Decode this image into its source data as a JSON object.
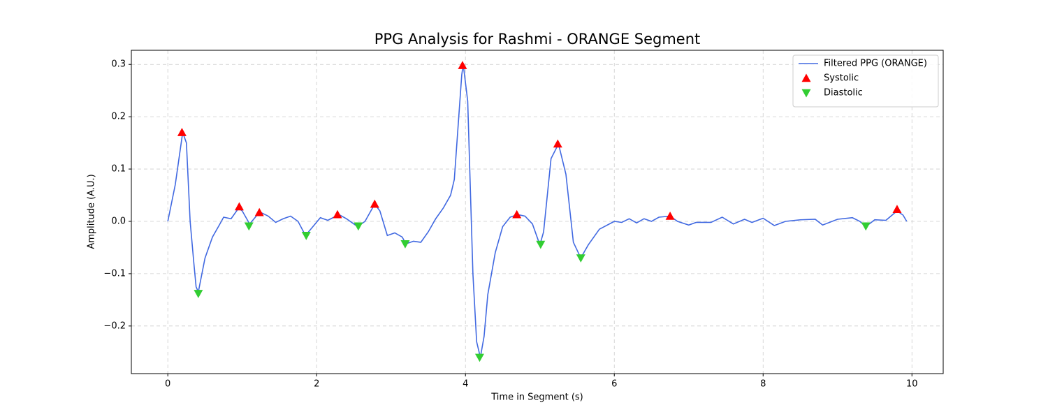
{
  "chart_data": {
    "type": "line",
    "title": "PPG Analysis for Rashmi - ORANGE Segment",
    "x_label": "Time in Segment (s)",
    "y_label": "Amplitude (A.U.)",
    "xlim": [
      -0.49,
      10.42
    ],
    "ylim": [
      -0.291,
      0.327
    ],
    "xticks": [
      0,
      2,
      4,
      6,
      8,
      10
    ],
    "yticks": [
      {
        "value": -0.2,
        "label": "−0.2"
      },
      {
        "value": -0.1,
        "label": "−0.1"
      },
      {
        "value": 0,
        "label": "0.0"
      },
      0.1,
      0.2,
      0.3
    ],
    "grid": true,
    "legend": "upper right",
    "series": [
      {
        "name": "Filtered PPG (ORANGE)",
        "type": "line",
        "color": "#4169e1",
        "x": [
          0,
          0.1,
          0.2,
          0.25,
          0.3,
          0.35,
          0.38,
          0.41,
          0.5,
          0.6,
          0.7,
          0.75,
          0.85,
          0.95,
          1.0,
          1.1,
          1.2,
          1.25,
          1.35,
          1.45,
          1.55,
          1.65,
          1.75,
          1.85,
          1.95,
          2.05,
          2.15,
          2.3,
          2.4,
          2.55,
          2.65,
          2.78,
          2.85,
          2.95,
          3.05,
          3.15,
          3.2,
          3.3,
          3.4,
          3.5,
          3.6,
          3.7,
          3.8,
          3.85,
          3.9,
          3.95,
          3.97,
          4.03,
          4.1,
          4.15,
          4.2,
          4.25,
          4.3,
          4.4,
          4.5,
          4.6,
          4.7,
          4.8,
          4.9,
          5.0,
          5.05,
          5.15,
          5.25,
          5.35,
          5.45,
          5.55,
          5.65,
          5.8,
          6.0,
          6.1,
          6.2,
          6.3,
          6.4,
          6.5,
          6.6,
          6.75,
          6.85,
          7.0,
          7.1,
          7.3,
          7.45,
          7.6,
          7.75,
          7.85,
          8.0,
          8.15,
          8.3,
          8.5,
          8.7,
          8.8,
          9.0,
          9.2,
          9.3,
          9.38,
          9.5,
          9.65,
          9.8,
          9.88,
          9.93
        ],
        "values": [
          0,
          0.07,
          0.17,
          0.15,
          0.0,
          -0.08,
          -0.125,
          -0.135,
          -0.07,
          -0.03,
          -0.005,
          0.008,
          0.005,
          0.025,
          0.02,
          -0.005,
          0.012,
          0.017,
          0.01,
          -0.002,
          0.005,
          0.01,
          0.0,
          -0.027,
          -0.01,
          0.007,
          0.002,
          0.013,
          0.005,
          -0.01,
          0.0,
          0.033,
          0.02,
          -0.027,
          -0.022,
          -0.03,
          -0.043,
          -0.038,
          -0.04,
          -0.02,
          0.005,
          0.025,
          0.05,
          0.08,
          0.18,
          0.28,
          0.3,
          0.23,
          -0.1,
          -0.23,
          -0.26,
          -0.22,
          -0.14,
          -0.06,
          -0.01,
          0.008,
          0.013,
          0.01,
          -0.005,
          -0.045,
          -0.02,
          0.12,
          0.148,
          0.09,
          -0.04,
          -0.07,
          -0.045,
          -0.015,
          0.0,
          -0.002,
          0.005,
          -0.003,
          0.005,
          0.0,
          0.008,
          0.01,
          0.0,
          -0.007,
          -0.002,
          -0.002,
          0.008,
          -0.005,
          0.004,
          -0.002,
          0.006,
          -0.008,
          0.0,
          0.003,
          0.004,
          -0.007,
          0.004,
          0.007,
          0.0,
          -0.01,
          0.003,
          0.002,
          0.02,
          0.012,
          0.0
        ]
      },
      {
        "name": "Systolic",
        "type": "scatter",
        "marker": "triangle-up",
        "color": "#ff0000",
        "x": [
          0.19,
          0.96,
          1.23,
          2.28,
          2.78,
          3.96,
          4.69,
          5.24,
          6.75,
          9.8
        ],
        "values": [
          0.17,
          0.028,
          0.017,
          0.013,
          0.033,
          0.298,
          0.013,
          0.148,
          0.01,
          0.023
        ]
      },
      {
        "name": "Diastolic",
        "type": "scatter",
        "marker": "triangle-down",
        "color": "#32cd32",
        "x": [
          0.41,
          1.09,
          1.86,
          2.56,
          3.19,
          4.19,
          5.01,
          5.55,
          9.38
        ],
        "values": [
          -0.138,
          -0.009,
          -0.027,
          -0.009,
          -0.043,
          -0.26,
          -0.044,
          -0.07,
          -0.009
        ]
      }
    ]
  }
}
